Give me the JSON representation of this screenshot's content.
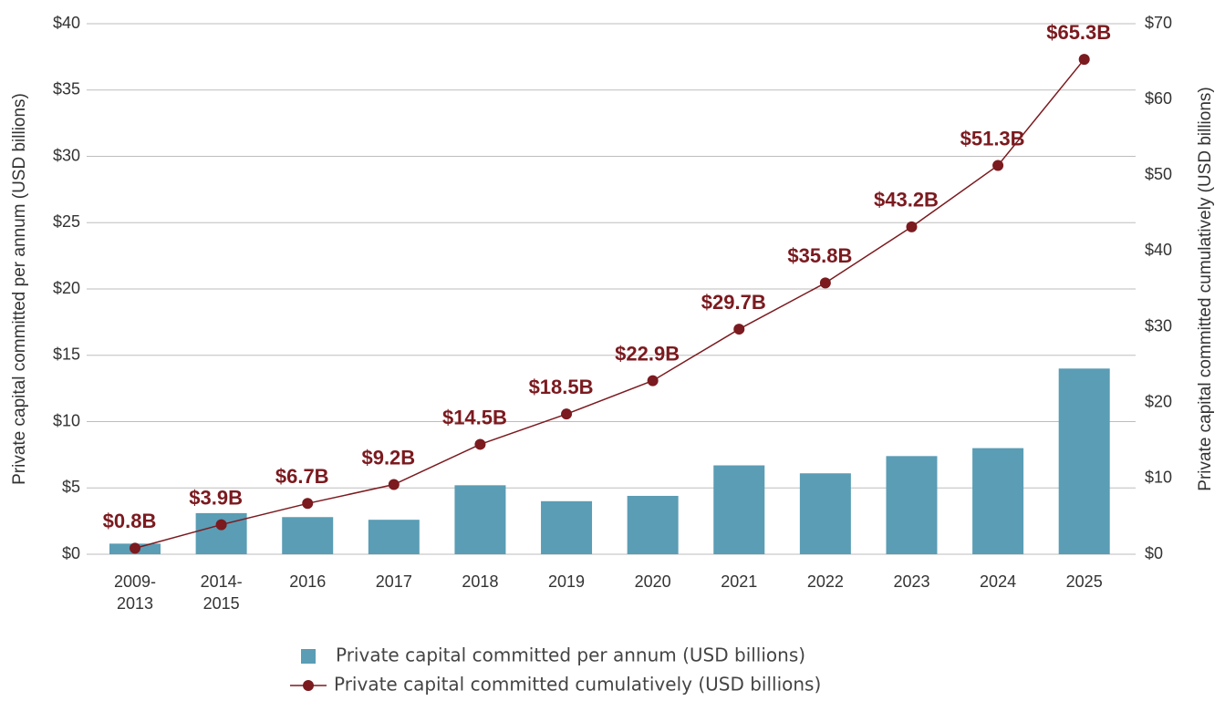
{
  "chart_data": {
    "type": "bar",
    "categories": [
      "2009-2013",
      "2014-2015",
      "2016",
      "2017",
      "2018",
      "2019",
      "2020",
      "2021",
      "2022",
      "2023",
      "2024",
      "2025"
    ],
    "series": [
      {
        "name": "Private capital committed per annum (USD billions)",
        "type": "bar",
        "color": "#5a9db5",
        "values": [
          0.8,
          3.1,
          2.8,
          2.6,
          5.2,
          4.0,
          4.4,
          6.7,
          6.1,
          7.4,
          8.0,
          14.0
        ]
      },
      {
        "name": "Private capital committed cumulatively (USD billions)",
        "type": "line",
        "axis": "y2",
        "color": "#7b1a1f",
        "values": [
          0.8,
          3.9,
          6.7,
          9.2,
          14.5,
          18.5,
          22.9,
          29.7,
          35.8,
          43.2,
          51.3,
          65.3
        ],
        "value_labels": [
          "$0.8B",
          "$3.9B",
          "$6.7B",
          "$9.2B",
          "$14.5B",
          "$18.5B",
          "$22.9B",
          "$29.7B",
          "$35.8B",
          "$43.2B",
          "$51.3B",
          "$65.3B"
        ]
      }
    ],
    "y_label": "Private capital committed per annum (USD billions)",
    "y2_label": "Private capital committed cumulatively (USD billions)",
    "ylim": [
      0,
      40
    ],
    "yticks": [
      {
        "value": 0,
        "label": "$0"
      },
      {
        "value": 5,
        "label": "$5"
      },
      {
        "value": 10,
        "label": "$10"
      },
      {
        "value": 15,
        "label": "$15"
      },
      {
        "value": 20,
        "label": "$20"
      },
      {
        "value": 25,
        "label": "$25"
      },
      {
        "value": 30,
        "label": "$30"
      },
      {
        "value": 35,
        "label": "$35"
      },
      {
        "value": 40,
        "label": "$40"
      }
    ],
    "y2lim": [
      0,
      70
    ],
    "y2ticks": [
      {
        "value": 0,
        "label": "$0"
      },
      {
        "value": 10,
        "label": "$10"
      },
      {
        "value": 20,
        "label": "$20"
      },
      {
        "value": 30,
        "label": "$30"
      },
      {
        "value": 40,
        "label": "$40"
      },
      {
        "value": 50,
        "label": "$50"
      },
      {
        "value": 60,
        "label": "$60"
      },
      {
        "value": 70,
        "label": "$70"
      }
    ],
    "grid": true,
    "legend": "bottom"
  }
}
